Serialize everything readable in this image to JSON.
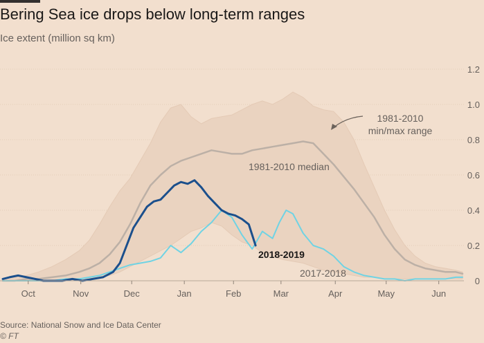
{
  "header": {
    "title": "Bering Sea ice drops below long-term ranges",
    "subtitle": "Ice extent (million sq km)"
  },
  "footer": {
    "source": "Source: National Snow and Ice Data Center",
    "credit": "© FT"
  },
  "colors": {
    "background": "#f2dfce",
    "range_fill": "#ead3c0",
    "median": "#bcb0a6",
    "current": "#1b4f8c",
    "previous": "#6fd3e4",
    "grid": "#e3ccb8",
    "text": "#66605c"
  },
  "chart_data": {
    "type": "area",
    "ylim": [
      0,
      1.2
    ],
    "yticks": [
      0,
      0.2,
      0.4,
      0.6,
      0.8,
      1.0,
      1.2
    ],
    "ytick_labels": [
      "0",
      "0.2",
      "0.4",
      "0.6",
      "0.8",
      "1.0",
      "1.2"
    ],
    "xlim": [
      1,
      272
    ],
    "month_ticks": [
      {
        "label": "Oct",
        "day": 16
      },
      {
        "label": "Nov",
        "day": 47
      },
      {
        "label": "Dec",
        "day": 77
      },
      {
        "label": "Jan",
        "day": 108
      },
      {
        "label": "Feb",
        "day": 137
      },
      {
        "label": "Mar",
        "day": 165
      },
      {
        "label": "Apr",
        "day": 197
      },
      {
        "label": "May",
        "day": 227
      },
      {
        "label": "Jun",
        "day": 258
      }
    ],
    "range": {
      "label": "1981-2010\nmin/max range",
      "x": [
        1,
        8,
        15,
        22,
        30,
        38,
        46,
        52,
        58,
        64,
        70,
        76,
        82,
        88,
        94,
        100,
        106,
        112,
        118,
        124,
        130,
        136,
        142,
        148,
        154,
        160,
        166,
        172,
        178,
        184,
        190,
        196,
        202,
        208,
        214,
        220,
        226,
        232,
        238,
        244,
        250,
        256,
        262,
        268,
        272
      ],
      "max": [
        0.01,
        0.02,
        0.03,
        0.05,
        0.08,
        0.12,
        0.17,
        0.23,
        0.32,
        0.42,
        0.51,
        0.58,
        0.68,
        0.78,
        0.9,
        0.98,
        1.0,
        0.93,
        0.89,
        0.92,
        0.93,
        0.94,
        0.97,
        1.0,
        1.02,
        1.0,
        1.03,
        1.07,
        1.04,
        0.99,
        0.97,
        0.96,
        0.9,
        0.8,
        0.66,
        0.53,
        0.4,
        0.29,
        0.2,
        0.14,
        0.1,
        0.08,
        0.07,
        0.06,
        0.05
      ],
      "min": [
        0.0,
        0.0,
        0.0,
        0.0,
        0.0,
        0.0,
        0.0,
        0.01,
        0.02,
        0.03,
        0.05,
        0.08,
        0.11,
        0.14,
        0.17,
        0.2,
        0.24,
        0.28,
        0.3,
        0.33,
        0.31,
        0.26,
        0.22,
        0.2,
        0.16,
        0.14,
        0.12,
        0.11,
        0.1,
        0.08,
        0.06,
        0.05,
        0.04,
        0.03,
        0.02,
        0.02,
        0.01,
        0.01,
        0.01,
        0.01,
        0.01,
        0.01,
        0.01,
        0.01,
        0.01
      ]
    },
    "series": [
      {
        "name": "1981-2010 median",
        "key": "median",
        "x": [
          1,
          8,
          15,
          22,
          30,
          38,
          46,
          52,
          58,
          64,
          70,
          76,
          82,
          88,
          94,
          100,
          106,
          112,
          118,
          124,
          130,
          136,
          142,
          148,
          154,
          160,
          166,
          172,
          178,
          184,
          190,
          196,
          202,
          208,
          214,
          220,
          226,
          232,
          238,
          244,
          250,
          256,
          262,
          268,
          272
        ],
        "y": [
          0.0,
          0.0,
          0.01,
          0.01,
          0.02,
          0.03,
          0.05,
          0.07,
          0.1,
          0.15,
          0.22,
          0.32,
          0.44,
          0.54,
          0.6,
          0.65,
          0.68,
          0.7,
          0.72,
          0.74,
          0.73,
          0.72,
          0.72,
          0.74,
          0.75,
          0.76,
          0.77,
          0.78,
          0.79,
          0.78,
          0.72,
          0.66,
          0.59,
          0.52,
          0.44,
          0.36,
          0.26,
          0.18,
          0.12,
          0.09,
          0.07,
          0.06,
          0.05,
          0.05,
          0.04
        ]
      },
      {
        "name": "2017-2018",
        "key": "previous",
        "x": [
          1,
          8,
          15,
          22,
          30,
          38,
          46,
          52,
          58,
          64,
          70,
          76,
          82,
          88,
          94,
          100,
          106,
          112,
          118,
          124,
          130,
          136,
          142,
          148,
          154,
          160,
          164,
          168,
          172,
          178,
          184,
          190,
          196,
          202,
          208,
          214,
          220,
          226,
          232,
          238,
          244,
          250,
          256,
          262,
          268,
          272
        ],
        "y": [
          0.0,
          0.0,
          0.0,
          0.0,
          0.0,
          0.01,
          0.01,
          0.02,
          0.03,
          0.05,
          0.07,
          0.09,
          0.1,
          0.11,
          0.13,
          0.2,
          0.16,
          0.21,
          0.28,
          0.33,
          0.4,
          0.36,
          0.26,
          0.18,
          0.28,
          0.24,
          0.33,
          0.4,
          0.38,
          0.27,
          0.2,
          0.18,
          0.14,
          0.08,
          0.05,
          0.03,
          0.02,
          0.01,
          0.01,
          0.0,
          0.01,
          0.01,
          0.01,
          0.01,
          0.02,
          0.02
        ]
      },
      {
        "name": "2018-2019",
        "key": "current",
        "x": [
          1,
          5,
          10,
          15,
          20,
          25,
          30,
          36,
          42,
          48,
          54,
          60,
          66,
          70,
          74,
          78,
          82,
          86,
          90,
          94,
          98,
          102,
          106,
          110,
          114,
          118,
          122,
          126,
          130,
          134,
          138,
          142,
          146,
          150
        ],
        "y": [
          0.01,
          0.02,
          0.03,
          0.02,
          0.01,
          0.0,
          0.0,
          0.0,
          0.01,
          0.0,
          0.01,
          0.02,
          0.05,
          0.1,
          0.2,
          0.3,
          0.36,
          0.42,
          0.45,
          0.46,
          0.5,
          0.54,
          0.56,
          0.55,
          0.57,
          0.53,
          0.48,
          0.44,
          0.4,
          0.38,
          0.37,
          0.35,
          0.32,
          0.2
        ]
      }
    ]
  }
}
